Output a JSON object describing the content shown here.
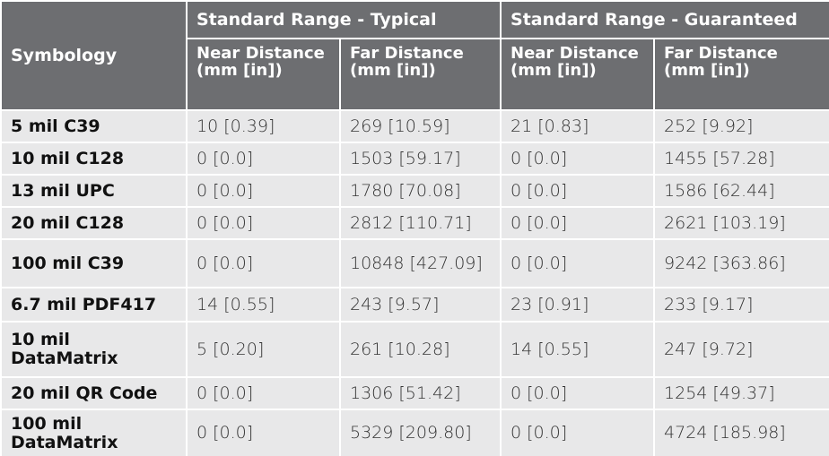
{
  "header": {
    "symbology": "Symbology",
    "groups": [
      "Standard Range - Typical",
      "Standard Range - Guaranteed"
    ],
    "columns": [
      "Near Distance (mm [in])",
      "Far Distance (mm [in])",
      "Near Distance (mm [in])",
      "Far Distance (mm [in])"
    ]
  },
  "table": {
    "rows": [
      [
        "5 mil C39",
        "10 [0.39]",
        "269 [10.59]",
        "21 [0.83]",
        "252 [9.92]"
      ],
      [
        "10 mil C128",
        "0 [0.0]",
        "1503 [59.17]",
        "0 [0.0]",
        "1455 [57.28]"
      ],
      [
        "13 mil UPC",
        "0 [0.0]",
        "1780 [70.08]",
        "0 [0.0]",
        "1586 [62.44]"
      ],
      [
        "20 mil C128",
        "0 [0.0]",
        "2812 [110.71]",
        "0 [0.0]",
        "2621 [103.19]"
      ],
      [
        "100 mil C39",
        "0 [0.0]",
        "10848 [427.09]",
        "0 [0.0]",
        "9242 [363.86]"
      ],
      [
        "6.7 mil PDF417",
        "14 [0.55]",
        "243 [9.57]",
        "23 [0.91]",
        "233 [9.17]"
      ],
      [
        "10 mil DataMatrix",
        "5 [0.20]",
        "261 [10.28]",
        "14 [0.55]",
        "247 [9.72]"
      ],
      [
        "20 mil QR Code",
        "0 [0.0]",
        "1306 [51.42]",
        "0 [0.0]",
        "1254 [49.37]"
      ],
      [
        "100 mil DataMatrix",
        "0 [0.0]",
        "5329 [209.80]",
        "0 [0.0]",
        "4724 [185.98]"
      ]
    ]
  }
}
